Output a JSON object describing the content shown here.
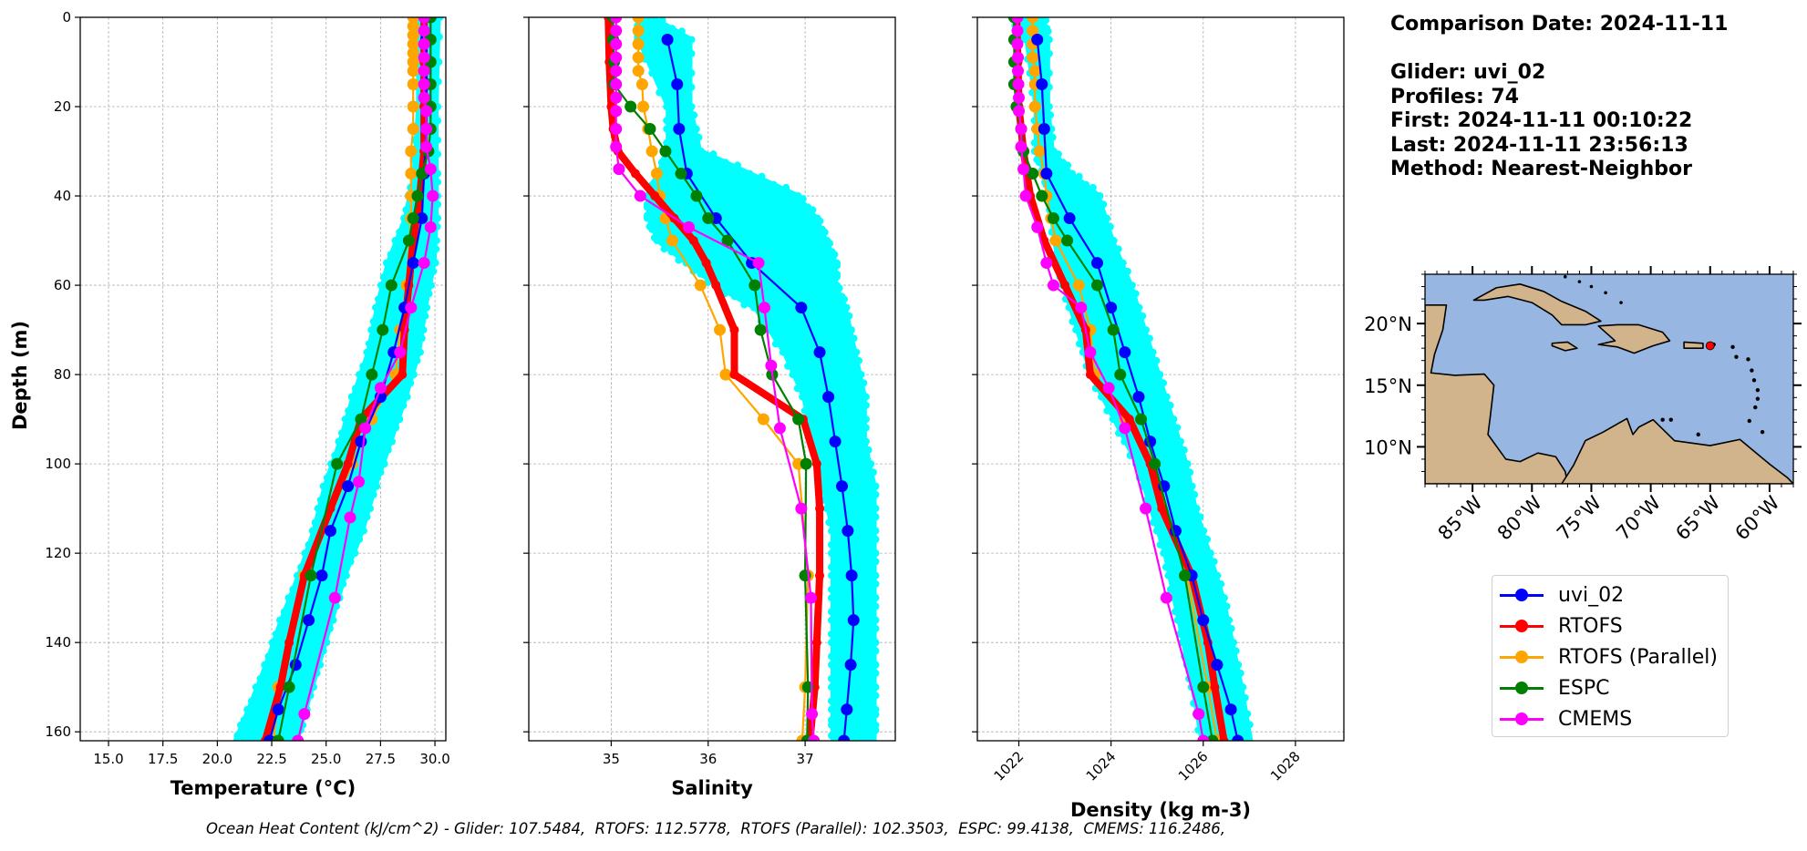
{
  "info": {
    "comparison_date": "Comparison Date: 2024-11-11",
    "glider": "Glider: uvi_02",
    "profiles": "Profiles: 74",
    "first": "First: 2024-11-11 00:10:22",
    "last": "Last: 2024-11-11 23:56:13",
    "method": "Method: Nearest-Neighbor"
  },
  "ohc_text": "Ocean Heat Content (kJ/cm^2) - Glider: 107.5484,  RTOFS: 112.5778,  RTOFS (Parallel): 102.3503,  ESPC: 99.4138,  CMEMS: 116.2486,",
  "legend": [
    {
      "label": "uvi_02",
      "color": "#0000ff"
    },
    {
      "label": "RTOFS",
      "color": "#ff0000"
    },
    {
      "label": "RTOFS (Parallel)",
      "color": "#ffa500"
    },
    {
      "label": "ESPC",
      "color": "#008000"
    },
    {
      "label": "CMEMS",
      "color": "#ff00ff"
    }
  ],
  "chart_data": [
    {
      "type": "line",
      "id": "temperature",
      "xlabel": "Temperature (°C)",
      "ylabel": "Depth (m)",
      "xlim": [
        13.7,
        30.5
      ],
      "ylim": [
        162,
        0
      ],
      "xticks": [
        15.0,
        17.5,
        20.0,
        22.5,
        25.0,
        27.5,
        30.0
      ],
      "xtick_labels": [
        "15.0",
        "17.5",
        "20.0",
        "22.5",
        "25.0",
        "27.5",
        "30.0"
      ],
      "yticks": [
        0,
        20,
        40,
        60,
        80,
        100,
        120,
        140,
        160
      ],
      "grid": true,
      "glider_scatter_envelope": {
        "color": "#00ffff",
        "depth": [
          0,
          20,
          35,
          45,
          55,
          65,
          75,
          85,
          95,
          105,
          115,
          125,
          135,
          145,
          155,
          162
        ],
        "min": [
          29.3,
          29.3,
          29.1,
          28.7,
          27.9,
          27.4,
          27.0,
          26.3,
          25.7,
          25.0,
          24.5,
          23.8,
          23.0,
          22.3,
          21.5,
          20.9
        ],
        "max": [
          30.1,
          30.0,
          30.0,
          30.0,
          29.9,
          29.5,
          29.2,
          28.6,
          27.9,
          27.2,
          26.6,
          25.8,
          25.2,
          24.6,
          24.0,
          23.6
        ]
      },
      "series": [
        {
          "name": "uvi_02",
          "color": "#0000ff",
          "depth": [
            5,
            15,
            25,
            35,
            45,
            55,
            65,
            75,
            85,
            95,
            105,
            115,
            125,
            135,
            145,
            155,
            162
          ],
          "values": [
            29.6,
            29.6,
            29.6,
            29.5,
            29.4,
            29.0,
            28.6,
            28.1,
            27.5,
            26.6,
            26.0,
            25.2,
            24.8,
            24.2,
            23.6,
            22.8,
            22.4
          ]
        },
        {
          "name": "RTOFS",
          "color": "#ff0000",
          "depth": [
            0,
            10,
            20,
            30,
            40,
            50,
            60,
            70,
            80,
            90,
            100,
            110,
            125,
            140,
            150,
            162
          ],
          "values": [
            29.5,
            29.5,
            29.5,
            29.5,
            29.3,
            29.0,
            28.8,
            28.6,
            28.5,
            26.6,
            26.0,
            25.2,
            24.0,
            23.3,
            22.9,
            22.2
          ]
        },
        {
          "name": "RTOFS (Parallel)",
          "color": "#ffa500",
          "depth": [
            0,
            2,
            4,
            6,
            8,
            10,
            12,
            15,
            20,
            25,
            30,
            35,
            40,
            45,
            60,
            65,
            70,
            80,
            90,
            100,
            125,
            150,
            162
          ],
          "values": [
            29.0,
            29.0,
            29.0,
            29.0,
            29.0,
            29.0,
            29.0,
            29.0,
            29.0,
            29.0,
            28.9,
            28.9,
            28.9,
            28.9,
            28.7,
            28.6,
            28.4,
            28.2,
            27.1,
            26.2,
            24.0,
            22.8,
            22.6
          ]
        },
        {
          "name": "ESPC",
          "color": "#008000",
          "depth": [
            0,
            5,
            10,
            15,
            20,
            25,
            30,
            35,
            40,
            45,
            50,
            60,
            70,
            80,
            90,
            100,
            125,
            150,
            162
          ],
          "values": [
            29.8,
            29.8,
            29.8,
            29.8,
            29.8,
            29.8,
            29.7,
            29.4,
            29.2,
            29.0,
            28.8,
            28.0,
            27.6,
            27.1,
            26.6,
            25.5,
            24.3,
            23.3,
            22.8
          ]
        },
        {
          "name": "CMEMS",
          "color": "#ff00ff",
          "depth": [
            0,
            3,
            6,
            9,
            12,
            15,
            18,
            21,
            25,
            29,
            34,
            40,
            47,
            55,
            65,
            75,
            83,
            92,
            104,
            112,
            130,
            156,
            162
          ],
          "values": [
            29.5,
            29.5,
            29.5,
            29.5,
            29.5,
            29.5,
            29.5,
            29.6,
            29.6,
            29.6,
            29.8,
            29.9,
            29.8,
            29.5,
            28.9,
            28.4,
            27.5,
            26.8,
            26.5,
            26.1,
            25.4,
            24.0,
            23.7
          ]
        }
      ]
    },
    {
      "type": "line",
      "id": "salinity",
      "xlabel": "Salinity",
      "xlim": [
        34.15,
        37.93
      ],
      "ylim": [
        162,
        0
      ],
      "xticks": [
        35,
        36,
        37
      ],
      "xtick_labels": [
        "35",
        "36",
        "37"
      ],
      "yticks": [
        0,
        20,
        40,
        60,
        80,
        100,
        120,
        140,
        160
      ],
      "grid": true,
      "glider_scatter_envelope": {
        "color": "#00ffff",
        "depth": [
          0,
          5,
          20,
          30,
          35,
          40,
          45,
          50,
          55,
          60,
          65,
          75,
          85,
          95,
          105,
          115,
          125,
          135,
          145,
          155,
          162
        ],
        "min": [
          35.3,
          35.3,
          35.6,
          35.6,
          35.5,
          35.4,
          35.4,
          35.5,
          35.8,
          36.1,
          36.5,
          36.8,
          37.0,
          37.1,
          37.2,
          37.3,
          37.3,
          37.3,
          37.3,
          37.3,
          37.3
        ],
        "max": [
          35.4,
          35.8,
          35.8,
          35.9,
          36.4,
          36.9,
          37.1,
          37.2,
          37.3,
          37.3,
          37.4,
          37.5,
          37.6,
          37.6,
          37.7,
          37.7,
          37.7,
          37.7,
          37.7,
          37.7,
          37.7
        ]
      },
      "series": [
        {
          "name": "uvi_02",
          "color": "#0000ff",
          "depth": [
            5,
            15,
            25,
            35,
            45,
            55,
            65,
            75,
            85,
            95,
            105,
            115,
            125,
            135,
            145,
            155,
            162
          ],
          "values": [
            35.58,
            35.68,
            35.7,
            35.78,
            36.08,
            36.45,
            36.96,
            37.15,
            37.24,
            37.31,
            37.38,
            37.44,
            37.48,
            37.5,
            37.47,
            37.43,
            37.4
          ]
        },
        {
          "name": "RTOFS",
          "color": "#ff0000",
          "depth": [
            0,
            10,
            20,
            25,
            30,
            35,
            40,
            45,
            50,
            55,
            60,
            70,
            80,
            90,
            100,
            110,
            125,
            140,
            150,
            162
          ],
          "values": [
            34.97,
            34.98,
            35.0,
            35.02,
            35.07,
            35.25,
            35.45,
            35.65,
            35.85,
            35.98,
            36.08,
            36.27,
            36.27,
            36.98,
            37.12,
            37.15,
            37.15,
            37.12,
            37.1,
            37.05
          ]
        },
        {
          "name": "RTOFS (Parallel)",
          "color": "#ffa500",
          "depth": [
            0,
            3,
            6,
            9,
            12,
            15,
            20,
            25,
            30,
            35,
            40,
            45,
            50,
            60,
            70,
            80,
            90,
            100,
            125,
            150,
            162
          ],
          "values": [
            35.28,
            35.28,
            35.28,
            35.28,
            35.28,
            35.32,
            35.33,
            35.38,
            35.42,
            35.47,
            35.5,
            35.56,
            35.63,
            35.92,
            36.12,
            36.18,
            36.57,
            36.93,
            37.03,
            37.0,
            36.97
          ]
        },
        {
          "name": "ESPC",
          "color": "#008000",
          "depth": [
            0,
            5,
            10,
            15,
            20,
            25,
            30,
            35,
            40,
            45,
            50,
            60,
            70,
            80,
            90,
            100,
            125,
            150,
            162
          ],
          "values": [
            35.02,
            35.02,
            35.03,
            35.03,
            35.2,
            35.4,
            35.56,
            35.72,
            35.88,
            36.0,
            36.2,
            36.48,
            36.54,
            36.66,
            36.93,
            37.01,
            37.0,
            37.03,
            37.02
          ]
        },
        {
          "name": "CMEMS",
          "color": "#ff00ff",
          "depth": [
            0,
            3,
            6,
            9,
            12,
            15,
            18,
            21,
            25,
            29,
            34,
            40,
            47,
            55,
            65,
            78,
            92,
            110,
            130,
            156,
            162
          ],
          "values": [
            35.05,
            35.05,
            35.05,
            35.05,
            35.05,
            35.05,
            35.05,
            35.05,
            35.05,
            35.05,
            35.08,
            35.3,
            35.8,
            36.52,
            36.58,
            36.65,
            36.74,
            36.96,
            37.06,
            37.07,
            37.09
          ]
        }
      ]
    },
    {
      "type": "line",
      "id": "density",
      "xlabel": "Density (kg m-3)",
      "xlim": [
        1021.1,
        1029.05
      ],
      "ylim": [
        162,
        0
      ],
      "xticks": [
        1022,
        1024,
        1026,
        1028
      ],
      "xtick_labels": [
        "1022",
        "1024",
        "1026",
        "1028"
      ],
      "yticks": [
        0,
        20,
        40,
        60,
        80,
        100,
        120,
        140,
        160
      ],
      "grid": true,
      "glider_scatter_envelope": {
        "color": "#00ffff",
        "depth": [
          0,
          5,
          20,
          30,
          35,
          40,
          50,
          60,
          70,
          80,
          90,
          100,
          110,
          120,
          130,
          140,
          150,
          162
        ],
        "min": [
          1021.9,
          1022.2,
          1022.4,
          1022.4,
          1022.6,
          1022.7,
          1022.8,
          1023.0,
          1023.3,
          1023.6,
          1024.1,
          1024.6,
          1024.9,
          1025.2,
          1025.4,
          1025.6,
          1025.8,
          1026.0
        ],
        "max": [
          1022.5,
          1022.6,
          1022.6,
          1022.7,
          1023.1,
          1023.7,
          1024.0,
          1024.4,
          1024.7,
          1025.0,
          1025.3,
          1025.6,
          1025.8,
          1026.1,
          1026.4,
          1026.6,
          1026.8,
          1027.0
        ]
      },
      "series": [
        {
          "name": "uvi_02",
          "color": "#0000ff",
          "depth": [
            5,
            15,
            25,
            35,
            45,
            55,
            65,
            75,
            85,
            95,
            105,
            115,
            125,
            135,
            145,
            155,
            162
          ],
          "values": [
            1022.4,
            1022.5,
            1022.55,
            1022.6,
            1023.1,
            1023.7,
            1024.0,
            1024.3,
            1024.6,
            1024.85,
            1025.15,
            1025.4,
            1025.75,
            1026.0,
            1026.3,
            1026.6,
            1026.75
          ]
        },
        {
          "name": "RTOFS",
          "color": "#ff0000",
          "depth": [
            0,
            10,
            20,
            30,
            40,
            50,
            60,
            70,
            80,
            90,
            100,
            110,
            125,
            140,
            150,
            162
          ],
          "values": [
            1021.95,
            1021.98,
            1022.0,
            1022.1,
            1022.25,
            1022.55,
            1023.0,
            1023.45,
            1023.55,
            1024.4,
            1024.85,
            1025.1,
            1025.75,
            1026.1,
            1026.25,
            1026.45
          ]
        },
        {
          "name": "RTOFS (Parallel)",
          "color": "#ffa500",
          "depth": [
            0,
            3,
            6,
            9,
            12,
            15,
            20,
            25,
            30,
            35,
            40,
            45,
            50,
            60,
            70,
            80,
            90,
            100,
            125,
            150,
            162
          ],
          "values": [
            1022.3,
            1022.3,
            1022.3,
            1022.3,
            1022.35,
            1022.35,
            1022.35,
            1022.4,
            1022.45,
            1022.55,
            1022.6,
            1022.7,
            1022.8,
            1023.3,
            1023.55,
            1023.65,
            1024.3,
            1024.9,
            1025.65,
            1026.1,
            1026.3
          ]
        },
        {
          "name": "ESPC",
          "color": "#008000",
          "depth": [
            0,
            5,
            10,
            15,
            20,
            25,
            30,
            35,
            40,
            45,
            50,
            60,
            70,
            80,
            90,
            100,
            125,
            150,
            162
          ],
          "values": [
            1021.9,
            1021.9,
            1021.9,
            1021.9,
            1021.95,
            1022.05,
            1022.1,
            1022.3,
            1022.5,
            1022.75,
            1023.05,
            1023.7,
            1024.05,
            1024.2,
            1024.65,
            1024.95,
            1025.6,
            1026.0,
            1026.2
          ]
        },
        {
          "name": "CMEMS",
          "color": "#ff00ff",
          "depth": [
            0,
            3,
            6,
            9,
            12,
            15,
            18,
            21,
            25,
            29,
            34,
            40,
            47,
            55,
            60,
            65,
            75,
            83,
            92,
            110,
            130,
            156,
            162
          ],
          "values": [
            1021.97,
            1021.97,
            1021.97,
            1021.98,
            1021.98,
            1021.99,
            1022.0,
            1022.0,
            1022.05,
            1022.05,
            1022.1,
            1022.15,
            1022.4,
            1022.6,
            1022.75,
            1023.35,
            1023.55,
            1023.95,
            1024.3,
            1024.75,
            1025.2,
            1025.9,
            1026.0
          ]
        }
      ]
    },
    {
      "type": "map",
      "id": "location-map",
      "lon_range": [
        -89,
        -58
      ],
      "lat_range": [
        7,
        24
      ],
      "xticks": [
        -85,
        -80,
        -75,
        -70,
        -65,
        -60
      ],
      "xtick_labels": [
        "85°W",
        "80°W",
        "75°W",
        "70°W",
        "65°W",
        "60°W"
      ],
      "yticks": [
        10,
        15,
        20
      ],
      "ytick_labels": [
        "10°N",
        "15°N",
        "20°N"
      ],
      "ocean_color": "#97b6e1",
      "land_color": "#d2b48c",
      "marker": {
        "lon": -65.0,
        "lat": 18.2,
        "color": "#ff0000"
      }
    }
  ]
}
